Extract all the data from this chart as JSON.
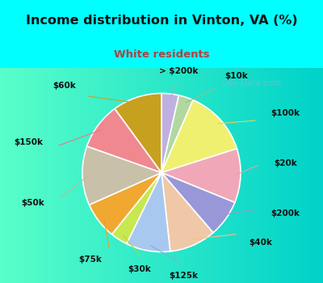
{
  "title": "Income distribution in Vinton, VA (%)",
  "subtitle": "White residents",
  "title_color": "#111111",
  "subtitle_color": "#aa4444",
  "background_cyan": "#00ffff",
  "background_chart_left": "#c8e8d8",
  "background_chart_right": "#f0f8f4",
  "labels": [
    "> $200k",
    "$10k",
    "$100k",
    "$20k",
    "$200k",
    "$40k",
    "$125k",
    "$30k",
    "$75k",
    "$50k",
    "$150k",
    "$60k"
  ],
  "values": [
    3.5,
    3.0,
    13.5,
    11.0,
    7.5,
    9.5,
    9.0,
    3.5,
    7.5,
    12.0,
    9.5,
    10.0
  ],
  "colors": [
    "#c0b0e0",
    "#b0d8a0",
    "#f0f070",
    "#f0a8b8",
    "#9898d8",
    "#f0c8a8",
    "#a8c8f0",
    "#c8e850",
    "#f0a830",
    "#c8c0a8",
    "#f08890",
    "#c8a020"
  ],
  "wedge_edge_color": "#ffffff",
  "label_fontsize": 7.5,
  "label_color": "#111111",
  "watermark": "City-Data.com"
}
